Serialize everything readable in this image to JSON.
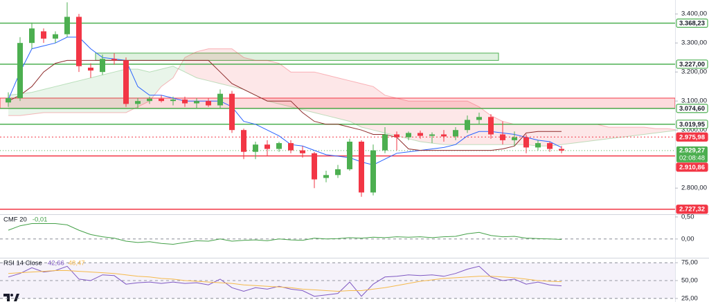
{
  "chart_data": [
    {
      "type": "candlestick",
      "ylim": [
        2710,
        3448
      ],
      "yticks": [
        {
          "value": 3400,
          "label": "3.400,00"
        },
        {
          "value": 3300,
          "label": "3.300,00"
        },
        {
          "value": 3200,
          "label": "3.200,00"
        },
        {
          "value": 3100,
          "label": "3.100,00"
        },
        {
          "value": 3000,
          "label": "3.000,00"
        },
        {
          "value": 2800,
          "label": "2.800,00"
        }
      ],
      "grid": false,
      "up_color": "#4caf50",
      "down_color": "#f23645",
      "open": [
        3095,
        3110,
        3300,
        3340,
        3315,
        3330,
        3390,
        3215,
        3200,
        3245,
        3240,
        3090,
        3100,
        3108,
        3100,
        3105,
        3092,
        3100,
        3085,
        3125,
        3000,
        2925,
        2950,
        2935,
        2955,
        2930,
        2920,
        2835,
        2845,
        2865,
        2960,
        2785,
        2930,
        2985,
        2975,
        2990,
        2980,
        2985,
        2978,
        3000,
        3035,
        3045,
        2985,
        2965,
        2975,
        2940,
        2955,
        2935,
        null,
        null,
        null,
        null,
        null,
        null,
        null,
        null,
        null,
        null
      ],
      "high": [
        3130,
        3320,
        3370,
        3350,
        3340,
        3440,
        3400,
        3230,
        3260,
        3265,
        3250,
        3110,
        3115,
        3120,
        3115,
        3115,
        3110,
        3110,
        3140,
        3135,
        3005,
        2960,
        2965,
        2960,
        2965,
        2945,
        2925,
        2860,
        2880,
        2970,
        2965,
        2950,
        3010,
        2995,
        2995,
        2998,
        2992,
        3000,
        3010,
        3050,
        3060,
        3055,
        3030,
        2995,
        2985,
        2965,
        2960,
        2945,
        null,
        null,
        null,
        null,
        null,
        null,
        null,
        null,
        null,
        null
      ],
      "low": [
        3080,
        3100,
        3280,
        3300,
        3300,
        3320,
        3200,
        3180,
        3190,
        3225,
        3080,
        3075,
        3090,
        3095,
        3085,
        3080,
        3075,
        3080,
        3075,
        2990,
        2900,
        2900,
        2910,
        2925,
        2920,
        2905,
        2800,
        2820,
        2835,
        2860,
        2770,
        2775,
        2920,
        2930,
        2965,
        2970,
        2955,
        2960,
        2965,
        2990,
        3020,
        2970,
        2950,
        2945,
        2920,
        2930,
        2925,
        2920,
        null,
        null,
        null,
        null,
        null,
        null,
        null,
        null,
        null,
        null
      ],
      "close": [
        3110,
        3300,
        3350,
        3315,
        3330,
        3390,
        3220,
        3205,
        3245,
        3240,
        3090,
        3100,
        3108,
        3100,
        3105,
        3092,
        3100,
        3085,
        3125,
        3000,
        2925,
        2950,
        2935,
        2955,
        2930,
        2920,
        2830,
        2845,
        2865,
        2960,
        2785,
        2930,
        2985,
        2975,
        2990,
        2980,
        2985,
        2978,
        3000,
        3035,
        3045,
        2985,
        2965,
        2975,
        2940,
        2955,
        2935,
        2929.27,
        null,
        null,
        null,
        null,
        null,
        null,
        null,
        null,
        null,
        null
      ],
      "series": [
        {
          "color": "#2962ff",
          "values": [
            3105,
            3200,
            3280,
            3290,
            3300,
            3320,
            3320,
            3280,
            3250,
            3245,
            3240,
            3150,
            3120,
            3120,
            3110,
            3100,
            3100,
            3100,
            3100,
            3080,
            3030,
            3020,
            3000,
            2980,
            2950,
            2945,
            2930,
            2915,
            2910,
            2905,
            2890,
            2880,
            2900,
            2920,
            2925,
            2930,
            2935,
            2940,
            2950,
            2980,
            2995,
            2995,
            2990,
            2985,
            2975,
            2965,
            2960,
            2940,
            null,
            null,
            null,
            null,
            null,
            null,
            null,
            null,
            null,
            null
          ]
        },
        {
          "color": "#8d2a2a",
          "values": [
            3100,
            3120,
            3150,
            3200,
            3230,
            3240,
            3240,
            3240,
            3240,
            3240,
            3240,
            3240,
            3240,
            3240,
            3240,
            3240,
            3240,
            3240,
            3200,
            3160,
            3140,
            3120,
            3100,
            3100,
            3100,
            3060,
            3030,
            3020,
            3020,
            3010,
            3000,
            2985,
            2985,
            2975,
            2935,
            2930,
            2930,
            2930,
            2930,
            2930,
            2930,
            2930,
            2935,
            2945,
            2990,
            2995,
            2995,
            2995,
            null,
            null,
            null,
            null,
            null,
            null,
            null,
            null,
            null,
            null
          ]
        }
      ],
      "cloud": {
        "up_color": "#4caf50",
        "down_color": "#f23645",
        "span_a": [
          3120,
          3125,
          3130,
          3140,
          3150,
          3160,
          3170,
          3180,
          3190,
          3200,
          3210,
          3210,
          3200,
          3210,
          3220,
          3200,
          3180,
          3170,
          3160,
          3150,
          3140,
          3120,
          3100,
          3090,
          3080,
          3070,
          3060,
          3050,
          3040,
          3030,
          3010,
          3000,
          2990,
          2980,
          2970,
          2960,
          2955,
          2950,
          2950,
          2950,
          2950,
          2950,
          2950,
          2950,
          2950,
          2945,
          2945,
          2950,
          2955,
          2960,
          2965,
          2970,
          2975,
          2980,
          2985,
          2990,
          2995,
          3000
        ],
        "span_b": [
          3050,
          3050,
          3055,
          3060,
          3060,
          3060,
          3060,
          3060,
          3060,
          3060,
          3060,
          3080,
          3100,
          3150,
          3180,
          3250,
          3270,
          3280,
          3280,
          3280,
          3250,
          3240,
          3240,
          3230,
          3200,
          3200,
          3200,
          3190,
          3180,
          3170,
          3160,
          3150,
          3120,
          3110,
          3100,
          3100,
          3100,
          3100,
          3100,
          3100,
          3080,
          3050,
          3030,
          3020,
          3020,
          3020,
          3020,
          3020,
          3020,
          3020,
          3020,
          3010,
          3010,
          3010,
          3010,
          3005,
          3005,
          3000
        ]
      },
      "zones": [
        {
          "low": 3240,
          "high": 3265,
          "color": "#4caf50"
        },
        {
          "low": 3075,
          "high": 3110,
          "color": "#f23645"
        }
      ],
      "levels": [
        {
          "value": 3368.23,
          "label": "3.368,23",
          "color": "#4caf50",
          "style": "solid"
        },
        {
          "value": 3227.0,
          "label": "3.227,00",
          "color": "#4caf50",
          "style": "solid"
        },
        {
          "value": 3074.6,
          "label": "3.074,60",
          "color": "#4caf50",
          "style": "solid"
        },
        {
          "value": 3019.95,
          "label": "3.019,95",
          "color": "#4caf50",
          "style": "solid"
        },
        {
          "value": 2975.98,
          "label": "2.975,98",
          "color": "#f23645",
          "style": "dotted"
        },
        {
          "value": 2910.86,
          "label": "2.910,86",
          "color": "#f23645",
          "style": "solid"
        },
        {
          "value": 2727.32,
          "label": "2.727,32",
          "color": "#f23645",
          "style": "solid"
        }
      ],
      "last_price": {
        "value": 2929.27,
        "label": "2.929,27",
        "countdown": "02:08:48",
        "color": "#4caf50"
      }
    },
    {
      "type": "line",
      "title": "CMF 20",
      "ylim": [
        -0.41,
        0.53
      ],
      "yticks": [
        {
          "value": 0.5,
          "label": "0,50"
        },
        {
          "value": 0,
          "label": "0,00"
        }
      ],
      "zero_line": true,
      "series": [
        {
          "color": "#43a047",
          "values": [
            0.2,
            0.3,
            0.35,
            0.35,
            0.35,
            0.32,
            0.2,
            0.1,
            0.05,
            0.02,
            -0.05,
            -0.08,
            -0.06,
            -0.1,
            -0.12,
            -0.08,
            -0.04,
            -0.05,
            0.0,
            -0.05,
            -0.03,
            -0.02,
            -0.04,
            0.0,
            -0.02,
            -0.03,
            0.02,
            0.0,
            0.01,
            0.03,
            0.02,
            0.04,
            0.03,
            0.05,
            0.04,
            0.05,
            0.03,
            0.05,
            0.06,
            0.12,
            0.15,
            0.08,
            0.05,
            0.06,
            0.02,
            0.01,
            0.0,
            -0.01
          ],
          "value_labels": [
            null,
            null,
            null,
            null,
            null,
            null,
            null,
            null,
            null,
            null,
            null,
            null,
            null,
            null,
            null,
            null,
            null,
            null,
            null,
            null,
            null,
            null,
            null,
            null,
            null,
            null,
            null,
            null,
            null,
            null,
            null,
            null,
            null,
            null,
            null,
            null,
            null,
            null,
            null,
            null,
            null,
            null,
            null,
            null,
            null,
            null,
            null,
            "-0,01"
          ]
        }
      ]
    },
    {
      "type": "line",
      "title": "RSI 14 Close",
      "ylim": [
        20,
        80
      ],
      "yticks": [
        {
          "value": 75,
          "label": "75,00"
        },
        {
          "value": 50,
          "label": "50,00"
        },
        {
          "value": 25,
          "label": "25,00"
        }
      ],
      "band_color": "#7e57c2",
      "series": [
        {
          "color": "#7e57c2",
          "values": [
            55,
            60,
            68,
            62,
            64,
            70,
            52,
            50,
            58,
            57,
            45,
            47,
            48,
            46,
            48,
            46,
            47,
            44,
            52,
            40,
            35,
            40,
            38,
            42,
            38,
            36,
            28,
            30,
            32,
            48,
            28,
            45,
            55,
            56,
            58,
            57,
            58,
            56,
            60,
            66,
            70,
            55,
            50,
            52,
            45,
            48,
            44,
            42.66
          ],
          "value_labels": [
            null,
            null,
            null,
            null,
            null,
            null,
            null,
            null,
            null,
            null,
            null,
            null,
            null,
            null,
            null,
            null,
            null,
            null,
            null,
            null,
            null,
            null,
            null,
            null,
            null,
            null,
            null,
            null,
            null,
            null,
            null,
            null,
            null,
            null,
            null,
            null,
            null,
            null,
            null,
            null,
            null,
            null,
            null,
            null,
            null,
            null,
            null,
            "42,66"
          ]
        },
        {
          "color": "#f5b94a",
          "values": [
            60,
            61,
            62,
            63,
            64,
            64,
            63,
            62,
            61,
            60,
            58,
            56,
            55,
            53,
            52,
            50,
            49,
            48,
            47,
            46,
            44,
            43,
            42,
            41,
            40,
            38,
            37,
            36,
            35,
            36,
            36,
            38,
            40,
            43,
            46,
            49,
            51,
            53,
            54,
            55,
            56,
            56,
            55,
            54,
            52,
            50,
            49,
            48.47
          ],
          "value_labels": [
            null,
            null,
            null,
            null,
            null,
            null,
            null,
            null,
            null,
            null,
            null,
            null,
            null,
            null,
            null,
            null,
            null,
            null,
            null,
            null,
            null,
            null,
            null,
            null,
            null,
            null,
            null,
            null,
            null,
            null,
            null,
            null,
            null,
            null,
            null,
            null,
            null,
            null,
            null,
            null,
            null,
            null,
            null,
            null,
            null,
            null,
            null,
            "48,47"
          ]
        }
      ]
    }
  ]
}
